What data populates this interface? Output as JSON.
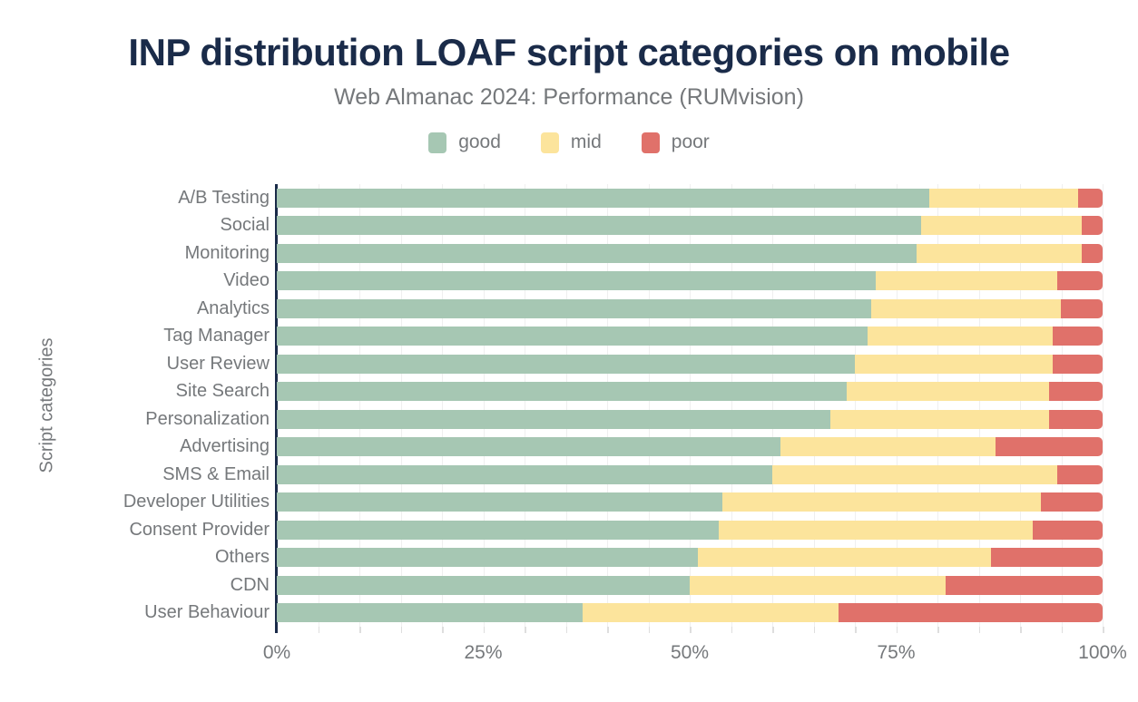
{
  "chart_data": {
    "type": "bar",
    "orientation": "horizontal",
    "stacked": true,
    "title": "INP distribution LOAF script categories on mobile",
    "subtitle": "Web Almanac 2024: Performance (RUMvision)",
    "xlabel": "",
    "ylabel": "Script categories",
    "units": "%",
    "xlim": [
      0,
      100
    ],
    "x_tick_values": [
      0,
      25,
      50,
      75,
      100
    ],
    "x_tick_labels": [
      "0%",
      "25%",
      "50%",
      "75%",
      "100%"
    ],
    "minor_grid_step": 5,
    "grid": "vertical",
    "legend_position": "top",
    "categories": [
      "A/B Testing",
      "Social",
      "Monitoring",
      "Video",
      "Analytics",
      "Tag Manager",
      "User Review",
      "Site Search",
      "Personalization",
      "Advertising",
      "SMS & Email",
      "Developer Utilities",
      "Consent Provider",
      "Others",
      "CDN",
      "User Behaviour"
    ],
    "series": [
      {
        "name": "good",
        "color": "#a6c7b3",
        "values": [
          79,
          78,
          77.5,
          72.5,
          72,
          71.5,
          70,
          69,
          67,
          61,
          60,
          54,
          53.5,
          51,
          50,
          37
        ]
      },
      {
        "name": "mid",
        "color": "#fce49c",
        "values": [
          18,
          19.5,
          20,
          22,
          23,
          22.5,
          24,
          24.5,
          26.5,
          26,
          34.5,
          38.5,
          38,
          35.5,
          31,
          31
        ]
      },
      {
        "name": "poor",
        "color": "#e0716a",
        "values": [
          3,
          2.5,
          2.5,
          5.5,
          5,
          6,
          6,
          6.5,
          6.5,
          13,
          5.5,
          7.5,
          8.5,
          13.5,
          19,
          32
        ]
      }
    ]
  },
  "colors": {
    "title": "#1a2b49",
    "axis_line": "#1a2b49",
    "text": "#75787b",
    "gridline": "#efefef",
    "tick": "#dedede",
    "background": "#ffffff"
  }
}
